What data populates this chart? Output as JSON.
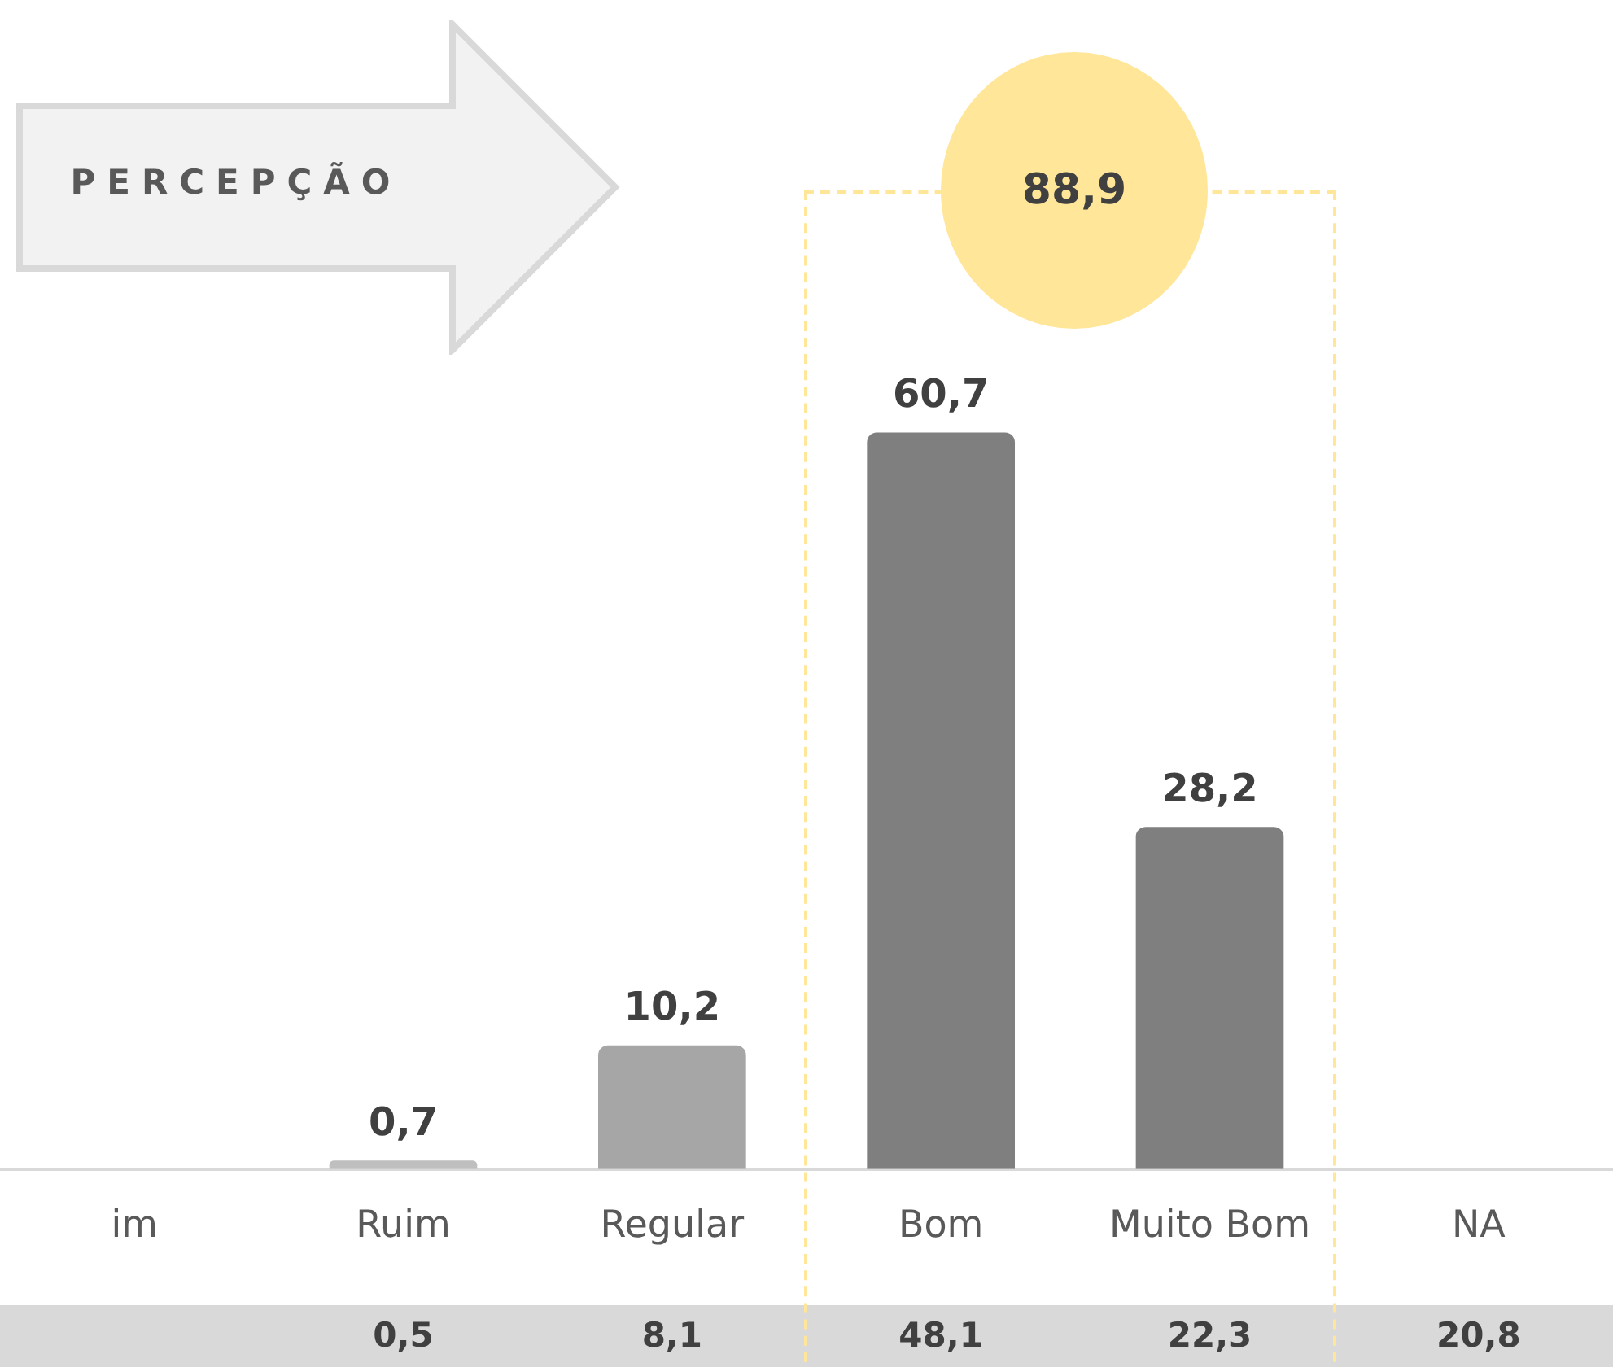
{
  "chart_data": {
    "type": "bar",
    "title": "PERCEPÇÃO",
    "categories": [
      "im",
      "Ruim",
      "Regular",
      "Bom",
      "Muito Bom",
      "NA"
    ],
    "values": [
      null,
      0.7,
      10.2,
      60.7,
      28.2,
      null
    ],
    "value_labels": [
      null,
      "0,7",
      "10,2",
      "60,7",
      "28,2",
      null
    ],
    "colors": [
      "#bfbfbf",
      "#bfbfbf",
      "#a6a6a6",
      "#7f7f7f",
      "#7f7f7f",
      "#7f7f7f"
    ],
    "annotations": [
      "88,9",
      "0,5",
      "8,1",
      "48,1",
      "22,3",
      "20,8"
    ]
  }
}
